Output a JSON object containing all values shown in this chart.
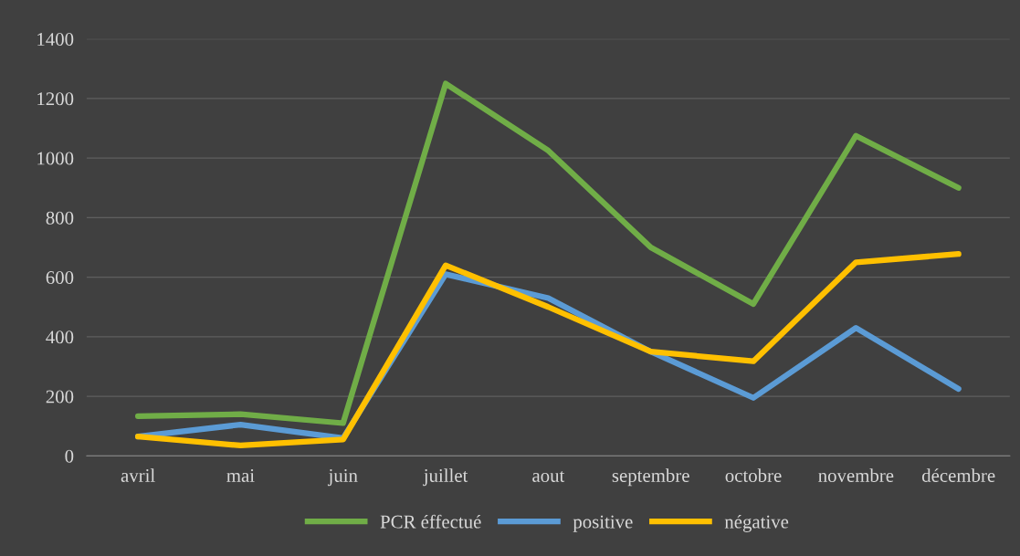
{
  "chart_data": {
    "type": "line",
    "categories": [
      "avril",
      "mai",
      "juin",
      "juillet",
      "aout",
      "septembre",
      "octobre",
      "novembre",
      "décembre"
    ],
    "series": [
      {
        "name": "PCR éffectué",
        "color": "#70ad47",
        "values": [
          133,
          140,
          110,
          1250,
          1025,
          700,
          510,
          1075,
          900
        ]
      },
      {
        "name": "positive",
        "color": "#5b9bd5",
        "values": [
          65,
          105,
          60,
          610,
          530,
          350,
          195,
          430,
          225
        ]
      },
      {
        "name": "négative",
        "color": "#ffc000",
        "values": [
          65,
          35,
          55,
          640,
          500,
          350,
          318,
          650,
          678
        ]
      }
    ],
    "ylim": [
      0,
      1400
    ],
    "yticks": [
      0,
      200,
      400,
      600,
      800,
      1000,
      1200,
      1400
    ],
    "grid": "y",
    "legend": "bottom",
    "marker": "none",
    "line_style": "solid"
  }
}
